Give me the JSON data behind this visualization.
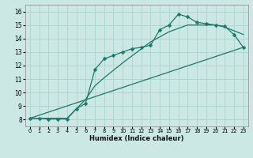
{
  "xlabel": "Humidex (Indice chaleur)",
  "bg_color": "#cce8e4",
  "grid_color": "#aad4cc",
  "line_color": "#1a7a6a",
  "xlim": [
    -0.5,
    23.5
  ],
  "ylim": [
    7.5,
    16.5
  ],
  "xticks": [
    0,
    1,
    2,
    3,
    4,
    5,
    6,
    7,
    8,
    9,
    10,
    11,
    12,
    13,
    14,
    15,
    16,
    17,
    18,
    19,
    20,
    21,
    22,
    23
  ],
  "yticks": [
    8,
    9,
    10,
    11,
    12,
    13,
    14,
    15,
    16
  ],
  "line1_x": [
    0,
    1,
    2,
    3,
    4,
    5,
    6,
    7,
    8,
    9,
    10,
    11,
    12,
    13,
    14,
    15,
    16,
    17,
    18,
    19,
    20,
    21,
    22,
    23
  ],
  "line1_y": [
    8.1,
    8.1,
    8.05,
    8.05,
    8.05,
    8.8,
    9.2,
    11.7,
    12.5,
    12.75,
    13.0,
    13.25,
    13.35,
    13.5,
    14.65,
    15.0,
    15.8,
    15.6,
    15.2,
    15.1,
    15.0,
    14.9,
    14.3,
    13.35
  ],
  "line2_x": [
    0,
    23
  ],
  "line2_y": [
    8.1,
    13.35
  ],
  "line3_x": [
    0,
    2,
    4,
    5,
    6,
    7,
    8,
    10,
    13,
    15,
    17,
    20,
    21,
    23
  ],
  "line3_y": [
    8.1,
    8.1,
    8.1,
    8.8,
    9.5,
    10.5,
    11.1,
    12.2,
    13.75,
    14.5,
    15.0,
    15.0,
    14.85,
    14.3
  ],
  "marker": "D",
  "markersize": 2.5,
  "linewidth": 0.9
}
